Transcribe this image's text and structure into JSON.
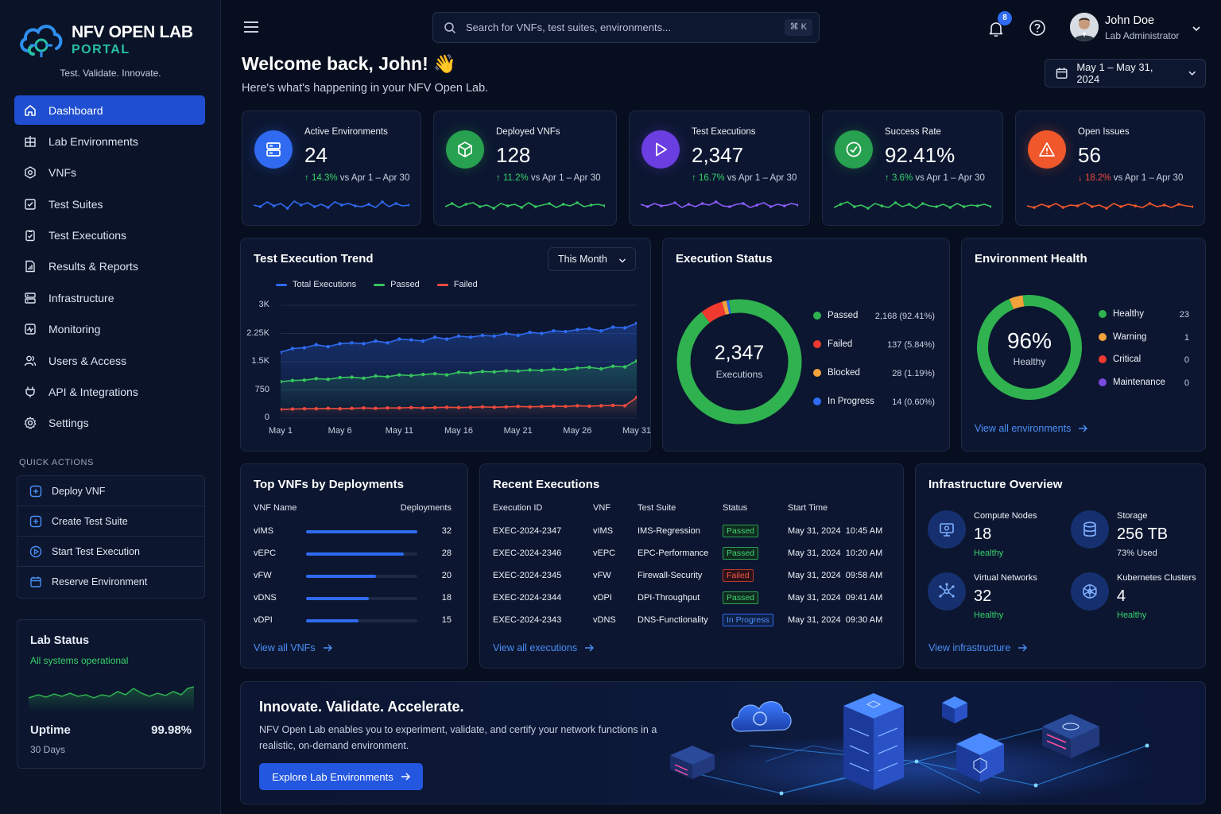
{
  "app": {
    "title": "NFV OPEN LAB",
    "subtitle": "PORTAL",
    "tagline": "Test. Validate. Innovate."
  },
  "nav": [
    {
      "label": "Dashboard",
      "icon": "home-icon"
    },
    {
      "label": "Lab Environments",
      "icon": "building-icon"
    },
    {
      "label": "VNFs",
      "icon": "hexagon-icon"
    },
    {
      "label": "Test Suites",
      "icon": "checklist-icon"
    },
    {
      "label": "Test Executions",
      "icon": "clipboard-check-icon"
    },
    {
      "label": "Results & Reports",
      "icon": "report-icon"
    },
    {
      "label": "Infrastructure",
      "icon": "server-icon"
    },
    {
      "label": "Monitoring",
      "icon": "pulse-icon"
    },
    {
      "label": "Users & Access",
      "icon": "users-icon"
    },
    {
      "label": "API & Integrations",
      "icon": "plug-icon"
    },
    {
      "label": "Settings",
      "icon": "gear-icon"
    }
  ],
  "quick_actions": {
    "title": "QUICK ACTIONS",
    "items": [
      "Deploy VNF",
      "Create Test Suite",
      "Start Test Execution",
      "Reserve Environment"
    ]
  },
  "lab_status": {
    "title": "Lab Status",
    "status": "All systems operational",
    "uptime_label": "Uptime",
    "uptime_value": "99.98%",
    "period": "30 Days"
  },
  "search": {
    "placeholder": "Search for VNFs, test suites, environments...",
    "shortcut": "⌘ K"
  },
  "notifications": {
    "count": "8"
  },
  "user": {
    "name": "John Doe",
    "role": "Lab Administrator"
  },
  "header": {
    "welcome": "Welcome back, John! 👋",
    "subtitle": "Here's what's happening in your NFV Open Lab.",
    "date_range": "May 1 – May 31, 2024"
  },
  "kpis": [
    {
      "label": "Active Environments",
      "value": "24",
      "delta": "14.3%",
      "direction": "up",
      "compare": "vs Apr 1 – Apr 30",
      "color": "#2f6af0",
      "icon": "server-stack-icon"
    },
    {
      "label": "Deployed VNFs",
      "value": "128",
      "delta": "11.2%",
      "direction": "up",
      "compare": "vs Apr 1 – Apr 30",
      "color": "#27a04f",
      "icon": "cube-icon"
    },
    {
      "label": "Test Executions",
      "value": "2,347",
      "delta": "16.7%",
      "direction": "up",
      "compare": "vs Apr 1 – Apr 30",
      "color": "#6a3ee0",
      "icon": "play-icon"
    },
    {
      "label": "Success Rate",
      "value": "92.41%",
      "delta": "3.6%",
      "direction": "up",
      "compare": "vs Apr 1 – Apr 30",
      "color": "#27a04f",
      "icon": "check-circle-icon"
    },
    {
      "label": "Open Issues",
      "value": "56",
      "delta": "18.2%",
      "direction": "down",
      "compare": "vs Apr 1 – Apr 30",
      "color": "#f0572a",
      "icon": "warning-icon"
    }
  ],
  "trend": {
    "title": "Test Execution Trend",
    "range_select": "This Month"
  },
  "chart_data": [
    {
      "type": "line",
      "title": "Test Execution Trend",
      "x": [
        "May 1",
        "May 2",
        "May 3",
        "May 4",
        "May 5",
        "May 6",
        "May 7",
        "May 8",
        "May 9",
        "May 10",
        "May 11",
        "May 12",
        "May 13",
        "May 14",
        "May 15",
        "May 16",
        "May 17",
        "May 18",
        "May 19",
        "May 20",
        "May 21",
        "May 22",
        "May 23",
        "May 24",
        "May 25",
        "May 26",
        "May 27",
        "May 28",
        "May 29",
        "May 30",
        "May 31"
      ],
      "x_ticks": [
        "May 1",
        "May 6",
        "May 11",
        "May 16",
        "May 21",
        "May 26",
        "May 31"
      ],
      "y_ticks": [
        "0",
        "750",
        "1.5K",
        "2.25K",
        "3K"
      ],
      "ylim": [
        0,
        3000
      ],
      "grid": true,
      "legend": "top-left",
      "series": [
        {
          "name": "Total Executions",
          "color": "#2f6af0",
          "values": [
            1750,
            1850,
            1870,
            1950,
            1900,
            1980,
            2000,
            1980,
            2050,
            2000,
            2100,
            2080,
            2050,
            2150,
            2100,
            2180,
            2150,
            2200,
            2180,
            2250,
            2200,
            2280,
            2250,
            2320,
            2300,
            2350,
            2380,
            2320,
            2420,
            2400,
            2520
          ]
        },
        {
          "name": "Passed",
          "color": "#36c45f",
          "values": [
            970,
            1000,
            1010,
            1050,
            1030,
            1080,
            1090,
            1060,
            1120,
            1100,
            1150,
            1130,
            1160,
            1180,
            1150,
            1220,
            1200,
            1240,
            1230,
            1260,
            1250,
            1280,
            1270,
            1300,
            1290,
            1330,
            1350,
            1310,
            1380,
            1360,
            1520
          ]
        },
        {
          "name": "Failed",
          "color": "#f04a3c",
          "values": [
            230,
            240,
            250,
            250,
            260,
            250,
            260,
            270,
            260,
            270,
            270,
            280,
            270,
            280,
            290,
            280,
            290,
            300,
            290,
            300,
            310,
            300,
            310,
            320,
            310,
            330,
            320,
            330,
            340,
            330,
            550
          ]
        }
      ]
    },
    {
      "type": "pie",
      "title": "Execution Status",
      "center_value": "2,347",
      "center_label": "Executions",
      "categories": [
        "Passed",
        "Failed",
        "Blocked",
        "In Progress"
      ],
      "values": [
        2168,
        137,
        28,
        14
      ],
      "percent_labels": [
        "2,168 (92.41%)",
        "137 (5.84%)",
        "28 (1.19%)",
        "14 (0.60%)"
      ],
      "colors": [
        "#2fb24f",
        "#f0392f",
        "#f2a23a",
        "#2f6af0"
      ]
    },
    {
      "type": "pie",
      "title": "Environment Health",
      "center_value": "96%",
      "center_label": "Healthy",
      "categories": [
        "Healthy",
        "Warning",
        "Critical",
        "Maintenance"
      ],
      "values": [
        23,
        1,
        0,
        0
      ],
      "colors": [
        "#2fb24f",
        "#f2a23a",
        "#f0392f",
        "#7a4ae0"
      ]
    }
  ],
  "status_panel": {
    "title": "Execution Status"
  },
  "env_panel": {
    "title": "Environment Health",
    "link": "View all environments"
  },
  "top_vnfs": {
    "title": "Top VNFs by Deployments",
    "col_name": "VNF Name",
    "col_deploy": "Deployments",
    "rows": [
      {
        "name": "vIMS",
        "value": "32"
      },
      {
        "name": "vEPC",
        "value": "28"
      },
      {
        "name": "vFW",
        "value": "20"
      },
      {
        "name": "vDNS",
        "value": "18"
      },
      {
        "name": "vDPI",
        "value": "15"
      }
    ],
    "max": 32,
    "link": "View all VNFs"
  },
  "recent": {
    "title": "Recent Executions",
    "headers": [
      "Execution ID",
      "VNF",
      "Test Suite",
      "Status",
      "Start Time"
    ],
    "rows": [
      {
        "id": "EXEC-2024-2347",
        "vnf": "vIMS",
        "suite": "IMS-Regression",
        "status": "Passed",
        "time": "May 31, 2024  10:45 AM"
      },
      {
        "id": "EXEC-2024-2346",
        "vnf": "vEPC",
        "suite": "EPC-Performance",
        "status": "Passed",
        "time": "May 31, 2024  10:20 AM"
      },
      {
        "id": "EXEC-2024-2345",
        "vnf": "vFW",
        "suite": "Firewall-Security",
        "status": "Failed",
        "time": "May 31, 2024  09:58 AM"
      },
      {
        "id": "EXEC-2024-2344",
        "vnf": "vDPI",
        "suite": "DPI-Throughput",
        "status": "Passed",
        "time": "May 31, 2024  09:41 AM"
      },
      {
        "id": "EXEC-2024-2343",
        "vnf": "vDNS",
        "suite": "DNS-Functionality",
        "status": "In Progress",
        "time": "May 31, 2024  09:30 AM"
      }
    ],
    "link": "View all executions"
  },
  "infra": {
    "title": "Infrastructure Overview",
    "items": [
      {
        "label": "Compute Nodes",
        "value": "18",
        "sub": "Healthy",
        "icon": "cpu-icon"
      },
      {
        "label": "Storage",
        "value": "256 TB",
        "sub": "73% Used",
        "icon": "database-icon"
      },
      {
        "label": "Virtual Networks",
        "value": "32",
        "sub": "Healthy",
        "icon": "network-icon"
      },
      {
        "label": "Kubernetes Clusters",
        "value": "4",
        "sub": "Healthy",
        "icon": "helm-icon"
      }
    ],
    "link": "View infrastructure"
  },
  "banner": {
    "title": "Innovate. Validate. Accelerate.",
    "text": "NFV Open Lab enables you to experiment, validate, and certify your network functions in a realistic, on-demand environment.",
    "button": "Explore Lab Environments"
  }
}
